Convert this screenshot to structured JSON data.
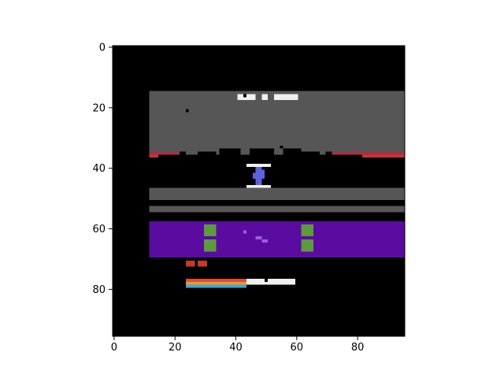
{
  "frame": {
    "grid_width": 96,
    "grid_height": 96,
    "background_color": "#000000",
    "colors": {
      "stone": "#565656",
      "white": "#f0f0f0",
      "crimson": "#a3304a",
      "red": "#c23a2c",
      "player": "#5b64dc",
      "purple": "#5a0ba0",
      "lavender": "#9a62d8",
      "green": "#5f9a40",
      "rainbow": [
        "#d94e3c",
        "#d9a02f",
        "#4b9fd6"
      ]
    },
    "sprites": [
      {
        "kind": "upper-rock-band",
        "color": "stone",
        "x": 12,
        "y": 15,
        "w": 84,
        "h": 21
      },
      {
        "kind": "score-block",
        "color": "white",
        "x": 41,
        "y": 16,
        "w": 6,
        "h": 2
      },
      {
        "kind": "score-block",
        "color": "white",
        "x": 49,
        "y": 16,
        "w": 2,
        "h": 2
      },
      {
        "kind": "score-block",
        "color": "white",
        "x": 53,
        "y": 16,
        "w": 8,
        "h": 2
      },
      {
        "kind": "black-notch",
        "color": "black",
        "x": 43,
        "y": 16,
        "w": 1,
        "h": 1
      },
      {
        "kind": "black-notch",
        "color": "black",
        "x": 24,
        "y": 21,
        "w": 1,
        "h": 1
      },
      {
        "kind": "black-notch",
        "color": "black",
        "x": 22,
        "y": 35,
        "w": 2,
        "h": 1
      },
      {
        "kind": "black-notch",
        "color": "black",
        "x": 28,
        "y": 35,
        "w": 6,
        "h": 1
      },
      {
        "kind": "black-notch",
        "color": "black",
        "x": 35,
        "y": 34,
        "w": 7,
        "h": 2
      },
      {
        "kind": "black-notch",
        "color": "black",
        "x": 45,
        "y": 34,
        "w": 8,
        "h": 2
      },
      {
        "kind": "black-notch",
        "color": "black",
        "x": 55,
        "y": 33,
        "w": 1,
        "h": 1
      },
      {
        "kind": "black-notch",
        "color": "black",
        "x": 56,
        "y": 34,
        "w": 6,
        "h": 2
      },
      {
        "kind": "black-notch",
        "color": "black",
        "x": 62,
        "y": 35,
        "w": 6,
        "h": 1
      },
      {
        "kind": "black-notch",
        "color": "black",
        "x": 70,
        "y": 35,
        "w": 2,
        "h": 1
      },
      {
        "kind": "ledge-left",
        "color": "crimson",
        "x": 12,
        "y": 35,
        "w": 10,
        "h": 1
      },
      {
        "kind": "ledge-left",
        "color": "red",
        "x": 12,
        "y": 36,
        "w": 3,
        "h": 1
      },
      {
        "kind": "ledge-right",
        "color": "crimson",
        "x": 72,
        "y": 35,
        "w": 24,
        "h": 1
      },
      {
        "kind": "ledge-right",
        "color": "red",
        "x": 82,
        "y": 36,
        "w": 14,
        "h": 1
      },
      {
        "kind": "player-bar-top",
        "color": "white",
        "x": 44,
        "y": 39,
        "w": 8,
        "h": 1
      },
      {
        "kind": "player-bar-bottom",
        "color": "white",
        "x": 44,
        "y": 46,
        "w": 8,
        "h": 1
      },
      {
        "kind": "player-body",
        "color": "player",
        "x": 47,
        "y": 40,
        "w": 2,
        "h": 6
      },
      {
        "kind": "player-body",
        "color": "player",
        "x": 46,
        "y": 42,
        "w": 4,
        "h": 2
      },
      {
        "kind": "player-body",
        "color": "player",
        "x": 49,
        "y": 41,
        "w": 1,
        "h": 2
      },
      {
        "kind": "black-notch",
        "color": "black",
        "x": 46,
        "y": 48,
        "w": 2,
        "h": 1
      },
      {
        "kind": "mid-rock-band",
        "color": "stone",
        "x": 12,
        "y": 47,
        "w": 84,
        "h": 4
      },
      {
        "kind": "thin-rock-band",
        "color": "stone",
        "x": 12,
        "y": 53,
        "w": 84,
        "h": 2
      },
      {
        "kind": "purple-river",
        "color": "purple",
        "x": 12,
        "y": 58,
        "w": 84,
        "h": 12
      },
      {
        "kind": "green-block",
        "color": "green",
        "x": 30,
        "y": 59,
        "w": 4,
        "h": 4
      },
      {
        "kind": "green-block",
        "color": "green",
        "x": 30,
        "y": 64,
        "w": 4,
        "h": 4
      },
      {
        "kind": "green-block",
        "color": "green",
        "x": 62,
        "y": 59,
        "w": 4,
        "h": 4
      },
      {
        "kind": "green-block",
        "color": "green",
        "x": 62,
        "y": 64,
        "w": 4,
        "h": 4
      },
      {
        "kind": "lavender-speck",
        "color": "lavender",
        "x": 43,
        "y": 61,
        "w": 1,
        "h": 1
      },
      {
        "kind": "lavender-creature",
        "color": "lavender",
        "x": 47,
        "y": 63,
        "w": 2,
        "h": 1
      },
      {
        "kind": "lavender-creature",
        "color": "lavender",
        "x": 49,
        "y": 64,
        "w": 2,
        "h": 1
      },
      {
        "kind": "red-marker",
        "color": "red",
        "x": 24,
        "y": 71,
        "w": 3,
        "h": 2
      },
      {
        "kind": "red-marker",
        "color": "red",
        "x": 28,
        "y": 71,
        "w": 3,
        "h": 2
      },
      {
        "kind": "rainbow-stripe",
        "color": "rainbow.0",
        "x": 24,
        "y": 77,
        "w": 20,
        "h": 1
      },
      {
        "kind": "rainbow-stripe",
        "color": "rainbow.1",
        "x": 24,
        "y": 78,
        "w": 20,
        "h": 1
      },
      {
        "kind": "rainbow-stripe",
        "color": "rainbow.2",
        "x": 24,
        "y": 79,
        "w": 20,
        "h": 1
      },
      {
        "kind": "white-strip",
        "color": "white",
        "x": 44,
        "y": 77,
        "w": 16,
        "h": 2
      },
      {
        "kind": "black-notch",
        "color": "black",
        "x": 50,
        "y": 77,
        "w": 1,
        "h": 1
      },
      {
        "kind": "black-notch",
        "color": "black",
        "x": 45,
        "y": 79,
        "w": 1,
        "h": 1
      },
      {
        "kind": "black-notch",
        "color": "black",
        "x": 52,
        "y": 79,
        "w": 1,
        "h": 1
      }
    ]
  },
  "axes": {
    "x_ticks": [
      0,
      20,
      40,
      60,
      80
    ],
    "y_ticks": [
      0,
      20,
      40,
      60,
      80
    ]
  }
}
